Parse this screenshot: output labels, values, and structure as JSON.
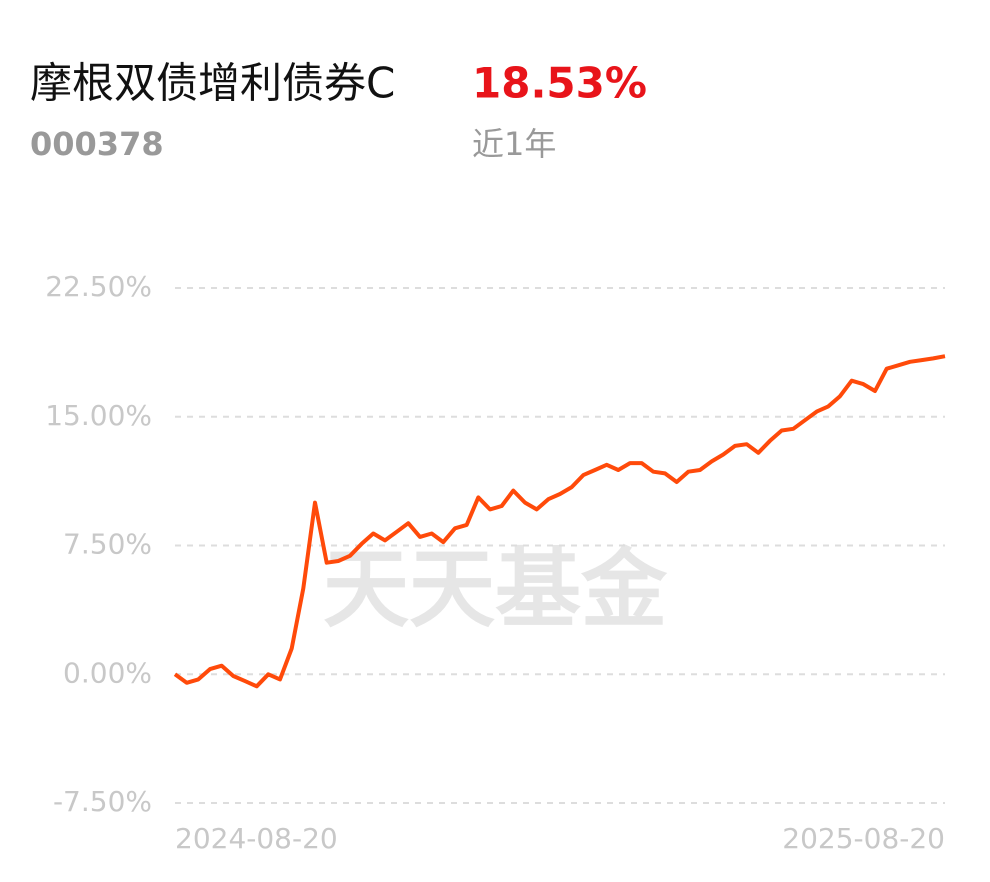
{
  "header": {
    "fund_name": "摩根双债增利债券C",
    "return": "18.53%",
    "code": "000378",
    "period": "近1年"
  },
  "watermark": "天天基金",
  "chart_data": {
    "type": "line",
    "categories": [
      "2024-08-20",
      null,
      null,
      null,
      null,
      null,
      null,
      null,
      null,
      null,
      null,
      null,
      null,
      null,
      null,
      null,
      null,
      null,
      null,
      null,
      null,
      null,
      null,
      null,
      null,
      null,
      null,
      null,
      null,
      null,
      null,
      null,
      null,
      null,
      null,
      null,
      null,
      null,
      null,
      null,
      null,
      null,
      null,
      null,
      null,
      null,
      null,
      null,
      null,
      null,
      null,
      null,
      null,
      null,
      null,
      null,
      null,
      null,
      null,
      null,
      null,
      null,
      null,
      null,
      null,
      null,
      "2025-08-20"
    ],
    "series": [
      {
        "name": "摩根双债增利债券C",
        "color": "#ff4a0a",
        "values": [
          0,
          -0.5,
          -0.3,
          0.3,
          0.5,
          -0.1,
          -0.4,
          -0.7,
          0.0,
          -0.3,
          1.5,
          5,
          10,
          6.5,
          6.6,
          6.9,
          7.6,
          8.2,
          7.8,
          8.3,
          8.8,
          8.0,
          8.2,
          7.7,
          8.5,
          8.7,
          10.3,
          9.6,
          9.8,
          10.7,
          10.0,
          9.6,
          10.2,
          10.5,
          10.9,
          11.6,
          11.9,
          12.2,
          11.9,
          12.3,
          12.3,
          11.8,
          11.7,
          11.2,
          11.8,
          11.9,
          12.4,
          12.8,
          13.3,
          13.4,
          12.9,
          13.6,
          14.2,
          14.3,
          14.8,
          15.3,
          15.6,
          16.2,
          17.1,
          16.9,
          16.5,
          17.8,
          18.0,
          18.2,
          18.3,
          18.4,
          18.53
        ]
      }
    ],
    "ylim": [
      -7.5,
      22.5
    ],
    "yticks": [
      {
        "value": -7.5,
        "label": "-7.50%"
      },
      {
        "value": 0,
        "label": "0.00%"
      },
      {
        "value": 7.5,
        "label": "7.50%"
      },
      {
        "value": 15,
        "label": "15.00%"
      },
      {
        "value": 22.5,
        "label": "22.50%"
      }
    ],
    "grid": true
  }
}
